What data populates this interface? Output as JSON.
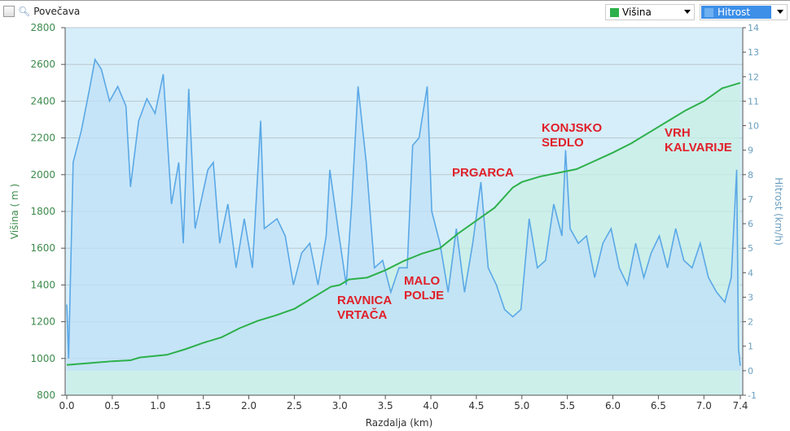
{
  "toolbar": {
    "zoom_label": "Povečava",
    "select1": "Višina",
    "select2": "Hitrost"
  },
  "colors": {
    "elevation": "#2db04b",
    "speed": "#5aa8e6",
    "plot_bg": "#d6eef9",
    "label": "#e0202a"
  },
  "chart_data": {
    "type": "line",
    "xlabel": "Razdalja   (km)",
    "ylabel_left": "Višina ( m )",
    "ylabel_right": "Hitrost (km/h)",
    "xlim": [
      0,
      7.4
    ],
    "ylim_left": [
      800,
      2800
    ],
    "ylim_right": [
      -1,
      14
    ],
    "x_ticks": [
      "0.0",
      "0.5",
      "1.0",
      "1.5",
      "2.0",
      "2.5",
      "3.0",
      "3.5",
      "4.0",
      "4.5",
      "5.0",
      "5.5",
      "6.0",
      "6.5",
      "7.0",
      "7.4"
    ],
    "y_left_ticks": [
      "800",
      "1000",
      "1200",
      "1400",
      "1600",
      "1800",
      "2000",
      "2200",
      "2400",
      "2600",
      "2800"
    ],
    "y_right_ticks": [
      "-1",
      "0",
      "1",
      "2",
      "3",
      "4",
      "5",
      "6",
      "7",
      "8",
      "9",
      "10",
      "11",
      "12",
      "13",
      "14"
    ],
    "grid": true,
    "annotations": [
      {
        "lines": [
          "RAVNICA",
          "VRTAČA"
        ]
      },
      {
        "lines": [
          "MALO",
          "POLJE"
        ]
      },
      {
        "lines": [
          "PRGARCA"
        ]
      },
      {
        "lines": [
          "KONJSKO",
          "SEDLO"
        ]
      },
      {
        "lines": [
          "VRH",
          "KALVARIJE"
        ]
      }
    ],
    "series": [
      {
        "name": "Višina",
        "axis": "left",
        "points": [
          [
            0,
            965
          ],
          [
            0.5,
            985
          ],
          [
            0.7,
            990
          ],
          [
            0.8,
            1005
          ],
          [
            1.0,
            1015
          ],
          [
            1.1,
            1020
          ],
          [
            1.3,
            1050
          ],
          [
            1.5,
            1085
          ],
          [
            1.7,
            1115
          ],
          [
            1.9,
            1165
          ],
          [
            2.1,
            1205
          ],
          [
            2.3,
            1235
          ],
          [
            2.5,
            1270
          ],
          [
            2.7,
            1330
          ],
          [
            2.9,
            1390
          ],
          [
            3.0,
            1400
          ],
          [
            3.1,
            1430
          ],
          [
            3.3,
            1440
          ],
          [
            3.5,
            1480
          ],
          [
            3.7,
            1530
          ],
          [
            3.9,
            1570
          ],
          [
            4.1,
            1600
          ],
          [
            4.3,
            1680
          ],
          [
            4.5,
            1750
          ],
          [
            4.7,
            1820
          ],
          [
            4.9,
            1930
          ],
          [
            5.0,
            1960
          ],
          [
            5.2,
            1990
          ],
          [
            5.4,
            2010
          ],
          [
            5.6,
            2030
          ],
          [
            5.8,
            2075
          ],
          [
            6.0,
            2120
          ],
          [
            6.2,
            2170
          ],
          [
            6.4,
            2230
          ],
          [
            6.6,
            2290
          ],
          [
            6.8,
            2350
          ],
          [
            7.0,
            2400
          ],
          [
            7.2,
            2470
          ],
          [
            7.4,
            2500
          ]
        ]
      },
      {
        "name": "Hitrost",
        "axis": "right",
        "points": [
          [
            0,
            2.7
          ],
          [
            0.02,
            0.5
          ],
          [
            0.07,
            8.5
          ],
          [
            0.16,
            9.8
          ],
          [
            0.25,
            11.5
          ],
          [
            0.31,
            12.7
          ],
          [
            0.38,
            12.3
          ],
          [
            0.47,
            11.0
          ],
          [
            0.56,
            11.6
          ],
          [
            0.65,
            10.8
          ],
          [
            0.7,
            7.5
          ],
          [
            0.79,
            10.2
          ],
          [
            0.88,
            11.1
          ],
          [
            0.97,
            10.5
          ],
          [
            1.06,
            12.1
          ],
          [
            1.15,
            6.8
          ],
          [
            1.23,
            8.5
          ],
          [
            1.28,
            5.2
          ],
          [
            1.34,
            11.5
          ],
          [
            1.41,
            5.8
          ],
          [
            1.55,
            8.2
          ],
          [
            1.61,
            8.5
          ],
          [
            1.68,
            5.2
          ],
          [
            1.77,
            6.8
          ],
          [
            1.86,
            4.2
          ],
          [
            1.95,
            6.2
          ],
          [
            2.04,
            4.2
          ],
          [
            2.13,
            10.2
          ],
          [
            2.17,
            5.8
          ],
          [
            2.31,
            6.2
          ],
          [
            2.4,
            5.5
          ],
          [
            2.49,
            3.5
          ],
          [
            2.58,
            4.8
          ],
          [
            2.67,
            5.2
          ],
          [
            2.76,
            3.5
          ],
          [
            2.85,
            5.5
          ],
          [
            2.89,
            8.2
          ],
          [
            2.98,
            5.8
          ],
          [
            3.07,
            3.5
          ],
          [
            3.13,
            6.8
          ],
          [
            3.2,
            11.6
          ],
          [
            3.29,
            8.5
          ],
          [
            3.38,
            4.2
          ],
          [
            3.47,
            4.5
          ],
          [
            3.56,
            3.2
          ],
          [
            3.65,
            4.2
          ],
          [
            3.74,
            4.2
          ],
          [
            3.8,
            9.2
          ],
          [
            3.87,
            9.5
          ],
          [
            3.96,
            11.6
          ],
          [
            4.01,
            6.5
          ],
          [
            4.1,
            5.2
          ],
          [
            4.19,
            3.2
          ],
          [
            4.28,
            5.8
          ],
          [
            4.37,
            3.2
          ],
          [
            4.46,
            5.2
          ],
          [
            4.55,
            7.7
          ],
          [
            4.63,
            4.2
          ],
          [
            4.72,
            3.5
          ],
          [
            4.81,
            2.5
          ],
          [
            4.9,
            2.2
          ],
          [
            4.99,
            2.5
          ],
          [
            5.08,
            6.2
          ],
          [
            5.17,
            4.2
          ],
          [
            5.26,
            4.5
          ],
          [
            5.35,
            6.8
          ],
          [
            5.44,
            5.5
          ],
          [
            5.48,
            9.0
          ],
          [
            5.53,
            5.8
          ],
          [
            5.62,
            5.2
          ],
          [
            5.71,
            5.5
          ],
          [
            5.8,
            3.8
          ],
          [
            5.89,
            5.2
          ],
          [
            5.98,
            5.8
          ],
          [
            6.07,
            4.2
          ],
          [
            6.16,
            3.5
          ],
          [
            6.25,
            5.2
          ],
          [
            6.34,
            3.8
          ],
          [
            6.42,
            4.8
          ],
          [
            6.51,
            5.5
          ],
          [
            6.6,
            4.2
          ],
          [
            6.69,
            5.8
          ],
          [
            6.78,
            4.5
          ],
          [
            6.87,
            4.2
          ],
          [
            6.96,
            5.2
          ],
          [
            7.05,
            3.8
          ],
          [
            7.14,
            3.2
          ],
          [
            7.23,
            2.8
          ],
          [
            7.3,
            3.8
          ],
          [
            7.36,
            8.2
          ],
          [
            7.38,
            0.9
          ],
          [
            7.4,
            0.2
          ]
        ]
      }
    ]
  }
}
